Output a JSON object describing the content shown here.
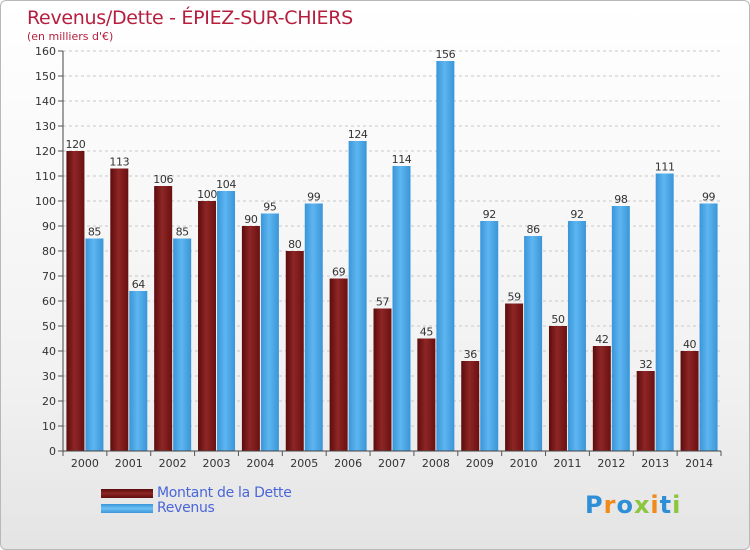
{
  "header": {
    "title": "Revenus/Dette - ÉPIEZ-SUR-CHIERS",
    "subtitle": "(en milliers d'€)"
  },
  "legend": {
    "items": [
      {
        "label": "Montant de la Dette",
        "color": "#7a1a1a"
      },
      {
        "label": "Revenus",
        "color": "#4aa6e6"
      }
    ]
  },
  "logo": {
    "text": "Proxiti",
    "letters": [
      {
        "ch": "P",
        "color": "#2e8fd6"
      },
      {
        "ch": "r",
        "color": "#f08a1c"
      },
      {
        "ch": "o",
        "color": "#2e8fd6"
      },
      {
        "ch": "x",
        "color": "#8cc63e"
      },
      {
        "ch": "i",
        "color": "#f08a1c"
      },
      {
        "ch": "t",
        "color": "#2e8fd6"
      },
      {
        "ch": "i",
        "color": "#8cc63e"
      }
    ]
  },
  "chart_data": {
    "type": "bar",
    "title": "Revenus/Dette - ÉPIEZ-SUR-CHIERS",
    "subtitle": "(en milliers d'€)",
    "categories": [
      "2000",
      "2001",
      "2002",
      "2003",
      "2004",
      "2005",
      "2006",
      "2007",
      "2008",
      "2009",
      "2010",
      "2011",
      "2012",
      "2013",
      "2014"
    ],
    "series": [
      {
        "name": "Montant de la Dette",
        "color": "#7a1a1a",
        "values": [
          120,
          113,
          106,
          100,
          90,
          80,
          69,
          57,
          45,
          36,
          59,
          50,
          42,
          32,
          40
        ]
      },
      {
        "name": "Revenus",
        "color": "#4aa6e6",
        "values": [
          85,
          64,
          85,
          104,
          95,
          99,
          124,
          114,
          156,
          92,
          86,
          92,
          98,
          111,
          99
        ]
      }
    ],
    "ylim": [
      0,
      160
    ],
    "yticks": [
      0,
      10,
      20,
      30,
      40,
      50,
      60,
      70,
      80,
      90,
      100,
      110,
      120,
      130,
      140,
      150,
      160
    ],
    "grid": true,
    "legend_position": "bottom-left",
    "data_labels": true
  }
}
